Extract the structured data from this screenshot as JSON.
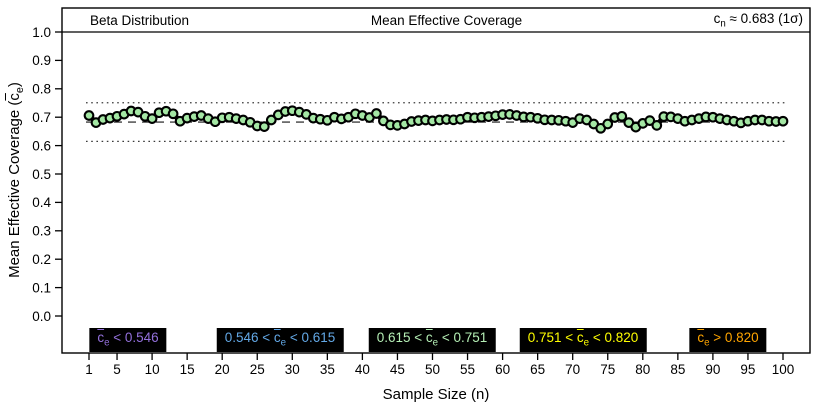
{
  "header": {
    "left": "Beta Distribution",
    "center": "Mean Effective Coverage",
    "right_pre": "c",
    "right_sub": "n",
    "right_rest": " ≈ 0.683 (1σ)"
  },
  "axes": {
    "y_label_pre": "Mean Effective Coverage (",
    "y_label_var": "c",
    "y_label_var_sub": "e",
    "y_label_post": ")",
    "x_label": "Sample Size (n)",
    "y_ticks": [
      "1.0",
      "0.9",
      "0.8",
      "0.7",
      "0.6",
      "0.5",
      "0.4",
      "0.3",
      "0.2",
      "0.1",
      "0.0"
    ],
    "x_ticks": [
      1,
      5,
      10,
      15,
      20,
      25,
      30,
      35,
      40,
      45,
      50,
      55,
      60,
      65,
      70,
      75,
      80,
      85,
      90,
      95,
      100
    ]
  },
  "legend": {
    "var": "c",
    "var_sub": "e",
    "background": "#000000",
    "items": [
      {
        "pre": "",
        "post": " < 0.546",
        "color": "#9370DB"
      },
      {
        "pre": "0.546 < ",
        "post": " < 0.615",
        "color": "#63A8E6"
      },
      {
        "pre": "0.615 < ",
        "post": " < 0.751",
        "color": "#B5EFB5"
      },
      {
        "pre": "0.751 < ",
        "post": " < 0.820",
        "color": "#FFFF00"
      },
      {
        "pre": "",
        "post": " > 0.820",
        "color": "#FFA500"
      }
    ]
  },
  "chart_data": {
    "type": "line",
    "title": "Mean Effective Coverage",
    "subtitle_left": "Beta Distribution",
    "annotation_right": "c_n ≈ 0.683 (1σ)",
    "xlabel": "Sample Size (n)",
    "ylabel": "Mean Effective Coverage (c̄_e)",
    "xlim": [
      1,
      100
    ],
    "ylim": [
      0.0,
      1.0
    ],
    "x_start": 1,
    "x_step": 1,
    "n_points": 100,
    "reference_lines": {
      "dashed_center": 0.683,
      "dotted_upper": 0.751,
      "dotted_lower": 0.615
    },
    "point_fill": "#A4E7A4",
    "line_color": "#000000",
    "values": [
      0.706,
      0.681,
      0.692,
      0.697,
      0.703,
      0.711,
      0.722,
      0.718,
      0.703,
      0.695,
      0.716,
      0.721,
      0.712,
      0.686,
      0.697,
      0.702,
      0.706,
      0.695,
      0.684,
      0.698,
      0.7,
      0.695,
      0.69,
      0.682,
      0.669,
      0.667,
      0.69,
      0.708,
      0.72,
      0.723,
      0.718,
      0.71,
      0.697,
      0.693,
      0.689,
      0.7,
      0.694,
      0.7,
      0.712,
      0.706,
      0.699,
      0.713,
      0.687,
      0.673,
      0.671,
      0.676,
      0.685,
      0.688,
      0.69,
      0.687,
      0.69,
      0.692,
      0.691,
      0.693,
      0.7,
      0.698,
      0.7,
      0.702,
      0.705,
      0.709,
      0.71,
      0.706,
      0.701,
      0.7,
      0.696,
      0.691,
      0.69,
      0.689,
      0.686,
      0.681,
      0.695,
      0.69,
      0.676,
      0.661,
      0.676,
      0.699,
      0.703,
      0.681,
      0.665,
      0.678,
      0.688,
      0.671,
      0.702,
      0.701,
      0.695,
      0.686,
      0.69,
      0.695,
      0.701,
      0.7,
      0.695,
      0.69,
      0.686,
      0.68,
      0.686,
      0.69,
      0.69,
      0.686,
      0.685,
      0.686
    ]
  }
}
